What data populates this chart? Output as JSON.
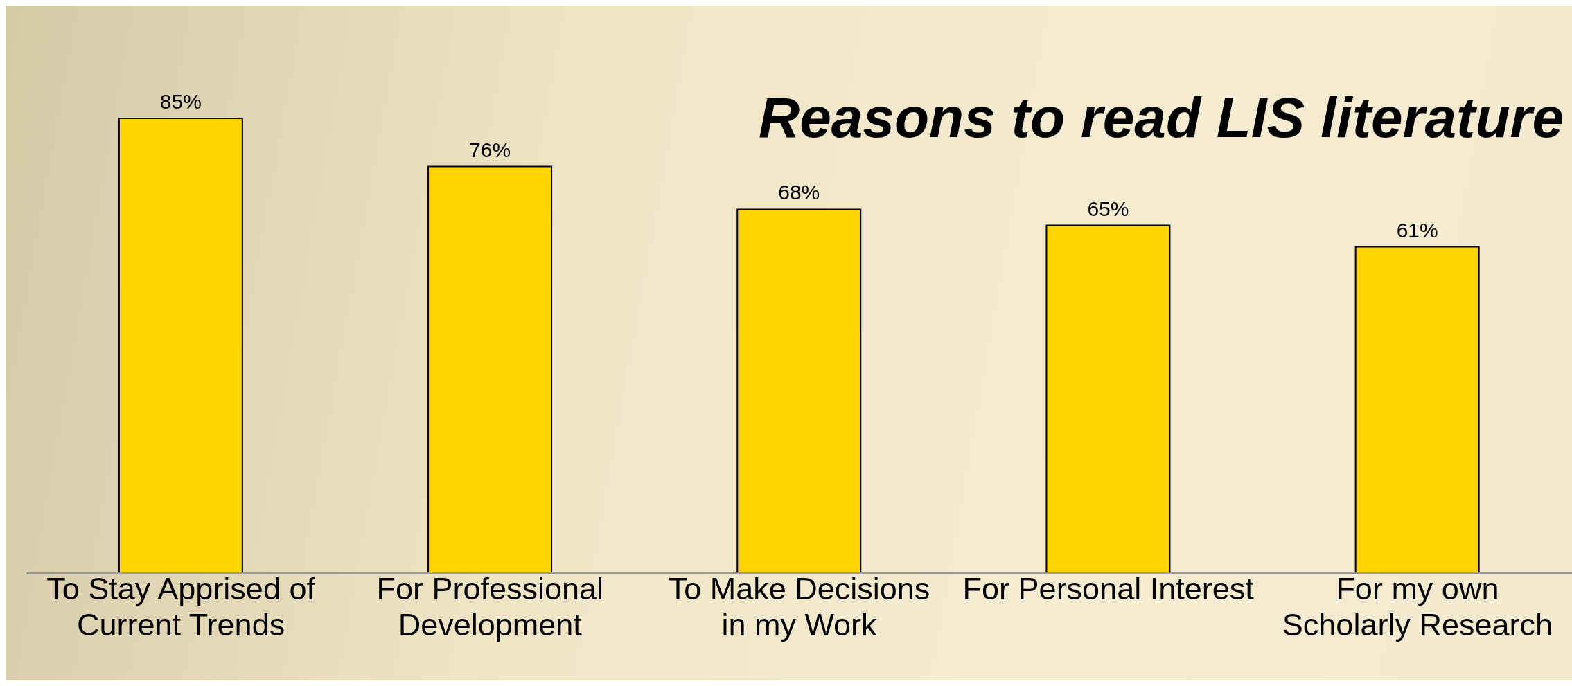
{
  "chart_data": {
    "type": "bar",
    "title": "Reasons to read LIS literature",
    "categories": [
      "To Stay Apprised of\nCurrent Trends",
      "For Professional\nDevelopment",
      "To Make Decisions\nin my Work",
      "For Personal Interest",
      "For my own\nScholarly Research"
    ],
    "values": [
      85,
      76,
      68,
      65,
      61
    ],
    "value_labels": [
      "85%",
      "76%",
      "68%",
      "65%",
      "61%"
    ],
    "color": "#ffd400"
  }
}
